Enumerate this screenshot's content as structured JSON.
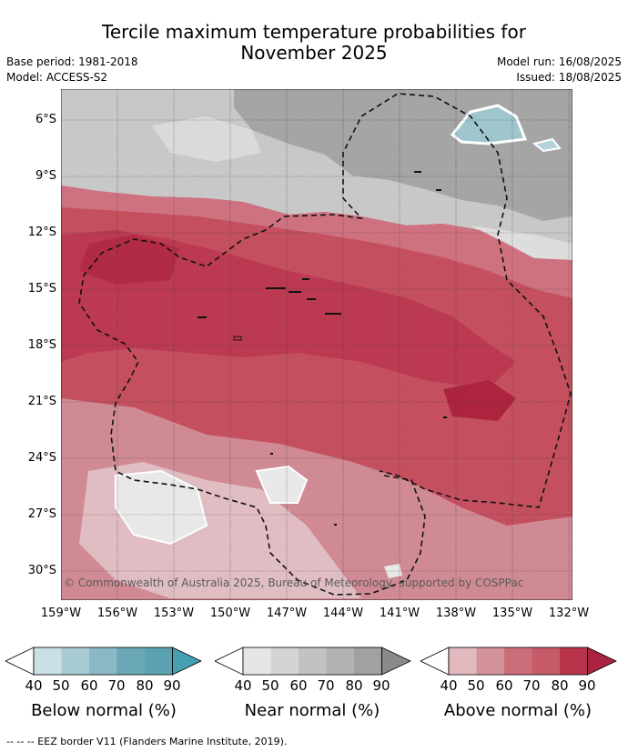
{
  "title_line1": "Tercile maximum temperature probabilities for",
  "title_line2": "November 2025",
  "meta": {
    "base_period": "Base period: 1981-2018",
    "model": "Model: ACCESS-S2",
    "model_run": "Model run: 16/08/2025",
    "issued": "Issued: 18/08/2025"
  },
  "lat_labels": [
    "6°S",
    "9°S",
    "12°S",
    "15°S",
    "18°S",
    "21°S",
    "24°S",
    "27°S",
    "30°S"
  ],
  "lon_labels": [
    "159°W",
    "156°W",
    "153°W",
    "150°W",
    "147°W",
    "144°W",
    "141°W",
    "138°W",
    "135°W",
    "132°W"
  ],
  "copyright": "© Commonwealth of Australia 2025, Bureau of Meteorology, supported by COSPPac",
  "colorbars": [
    {
      "label": "Below normal (%)",
      "ticks": [
        "40",
        "50",
        "60",
        "70",
        "80",
        "90"
      ],
      "colors": [
        "#c8e0e6",
        "#a8cbd3",
        "#8ab8c4",
        "#6aa8b6",
        "#45a0b0"
      ]
    },
    {
      "label": "Near normal (%)",
      "ticks": [
        "40",
        "50",
        "60",
        "70",
        "80",
        "90"
      ],
      "colors": [
        "#e6e6e6",
        "#d4d4d4",
        "#c2c2c2",
        "#b2b2b2",
        "#a1a1a1"
      ]
    },
    {
      "label": "Above normal (%)",
      "ticks": [
        "40",
        "50",
        "60",
        "70",
        "80",
        "90"
      ],
      "colors": [
        "#e1b9bf",
        "#d4929b",
        "#cc6e7a",
        "#c65a68",
        "#b8344b"
      ]
    }
  ],
  "footnote": "--  --  -- EEZ border V11 (Flanders Marine Institute, 2019)."
}
